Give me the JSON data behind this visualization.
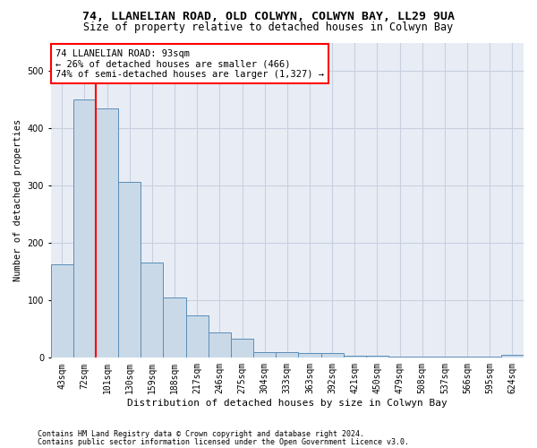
{
  "title1": "74, LLANELIAN ROAD, OLD COLWYN, COLWYN BAY, LL29 9UA",
  "title2": "Size of property relative to detached houses in Colwyn Bay",
  "xlabel": "Distribution of detached houses by size in Colwyn Bay",
  "ylabel": "Number of detached properties",
  "footer1": "Contains HM Land Registry data © Crown copyright and database right 2024.",
  "footer2": "Contains public sector information licensed under the Open Government Licence v3.0.",
  "categories": [
    "43sqm",
    "72sqm",
    "101sqm",
    "130sqm",
    "159sqm",
    "188sqm",
    "217sqm",
    "246sqm",
    "275sqm",
    "304sqm",
    "333sqm",
    "363sqm",
    "392sqm",
    "421sqm",
    "450sqm",
    "479sqm",
    "508sqm",
    "537sqm",
    "566sqm",
    "595sqm",
    "624sqm"
  ],
  "values": [
    163,
    450,
    435,
    307,
    167,
    106,
    74,
    45,
    33,
    10,
    10,
    8,
    8,
    3,
    3,
    2,
    2,
    2,
    2,
    2,
    5
  ],
  "bar_color": "#c9d9e8",
  "bar_edge_color": "#5b8db8",
  "grid_color": "#c8cfe0",
  "bg_color": "#e8edf5",
  "marker_color": "red",
  "annotation_text": "74 LLANELIAN ROAD: 93sqm\n← 26% of detached houses are smaller (466)\n74% of semi-detached houses are larger (1,327) →",
  "annotation_box_color": "white",
  "annotation_border_color": "red",
  "ylim": [
    0,
    550
  ],
  "title1_fontsize": 9.5,
  "title2_fontsize": 8.5,
  "xlabel_fontsize": 8,
  "ylabel_fontsize": 7.5,
  "tick_fontsize": 7,
  "annotation_fontsize": 7.5,
  "footer_fontsize": 6
}
